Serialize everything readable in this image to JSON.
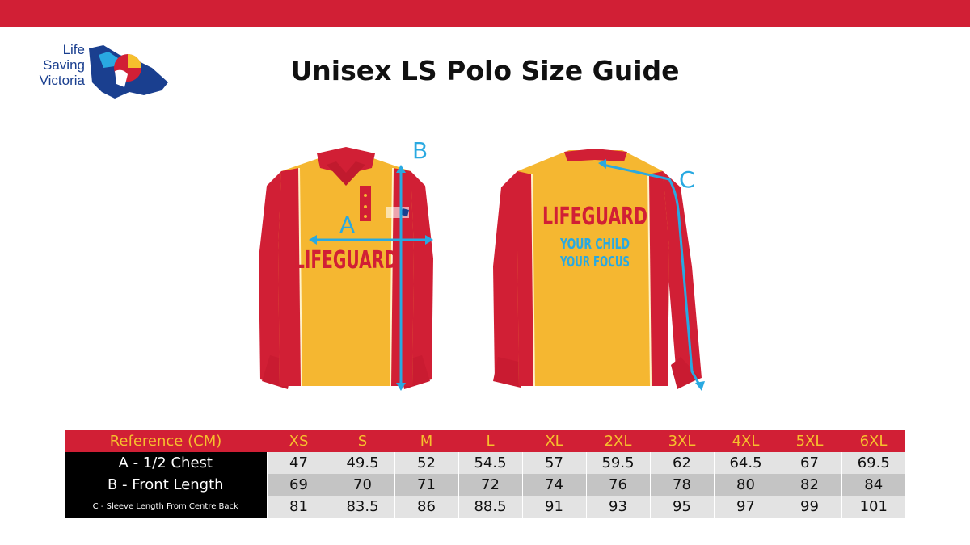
{
  "logo": {
    "line1": "Life",
    "line2": "Saving",
    "line3": "Victoria"
  },
  "title": "Unisex LS Polo Size Guide",
  "shirt": {
    "front_text": "LIFEGUARD",
    "back_text": "LIFEGUARD",
    "back_sub1": "YOUR CHILD",
    "back_sub2": "YOUR FOCUS",
    "label_a": "A",
    "label_b": "B",
    "label_c": "C"
  },
  "table": {
    "header_label": "Reference (CM)",
    "sizes": [
      "XS",
      "S",
      "M",
      "L",
      "XL",
      "2XL",
      "3XL",
      "4XL",
      "5XL",
      "6XL"
    ],
    "rows": [
      {
        "label": "A - 1/2 Chest",
        "values": [
          "47",
          "49.5",
          "52",
          "54.5",
          "57",
          "59.5",
          "62",
          "64.5",
          "67",
          "69.5"
        ]
      },
      {
        "label": "B - Front Length",
        "values": [
          "69",
          "70",
          "71",
          "72",
          "74",
          "76",
          "78",
          "80",
          "82",
          "84"
        ]
      },
      {
        "label": "C - Sleeve Length From Centre Back",
        "values": [
          "81",
          "83.5",
          "86",
          "88.5",
          "91",
          "93",
          "95",
          "97",
          "99",
          "101"
        ]
      }
    ]
  },
  "colors": {
    "brand_red": "#d11f35",
    "shirt_yellow": "#f5b731",
    "accent_blue": "#29a9e1",
    "logo_blue": "#1a3f8f"
  }
}
